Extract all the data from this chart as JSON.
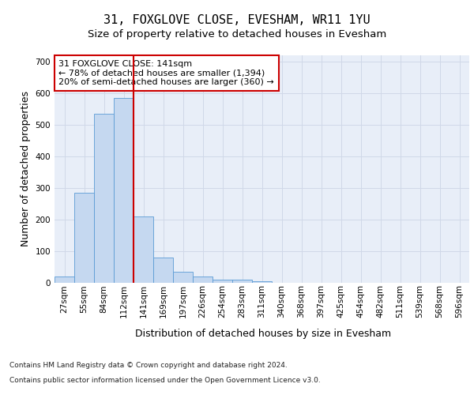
{
  "title": "31, FOXGLOVE CLOSE, EVESHAM, WR11 1YU",
  "subtitle": "Size of property relative to detached houses in Evesham",
  "xlabel": "Distribution of detached houses by size in Evesham",
  "ylabel": "Number of detached properties",
  "footer_line1": "Contains HM Land Registry data © Crown copyright and database right 2024.",
  "footer_line2": "Contains public sector information licensed under the Open Government Licence v3.0.",
  "bar_labels": [
    "27sqm",
    "55sqm",
    "84sqm",
    "112sqm",
    "141sqm",
    "169sqm",
    "197sqm",
    "226sqm",
    "254sqm",
    "283sqm",
    "311sqm",
    "340sqm",
    "368sqm",
    "397sqm",
    "425sqm",
    "454sqm",
    "482sqm",
    "511sqm",
    "539sqm",
    "568sqm",
    "596sqm"
  ],
  "bar_values": [
    20,
    285,
    535,
    585,
    210,
    80,
    35,
    20,
    10,
    10,
    5,
    0,
    0,
    0,
    0,
    0,
    0,
    0,
    0,
    0,
    0
  ],
  "bar_color": "#c5d8f0",
  "bar_edge_color": "#5a9bd5",
  "marker_index": 4,
  "marker_color": "#cc0000",
  "annotation_line1": "31 FOXGLOVE CLOSE: 141sqm",
  "annotation_line2": "← 78% of detached houses are smaller (1,394)",
  "annotation_line3": "20% of semi-detached houses are larger (360) →",
  "annotation_box_color": "#ffffff",
  "annotation_box_edge": "#cc0000",
  "ylim": [
    0,
    720
  ],
  "yticks": [
    0,
    100,
    200,
    300,
    400,
    500,
    600,
    700
  ],
  "grid_color": "#d0d8e8",
  "bg_color": "#e8eef8",
  "fig_bg": "#ffffff",
  "title_fontsize": 11,
  "subtitle_fontsize": 9.5,
  "axis_label_fontsize": 9,
  "tick_fontsize": 7.5,
  "annotation_fontsize": 8,
  "footer_fontsize": 6.5
}
